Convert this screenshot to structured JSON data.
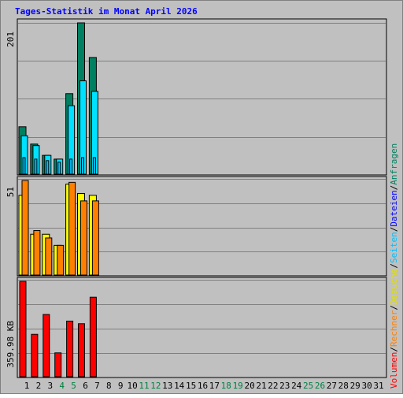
{
  "title": "Tages-Statistik im Monat April 2026",
  "colors": {
    "title": "#0000ff",
    "background": "#c0c0c0",
    "panel_border": "#000000",
    "gridline": "#808080",
    "anfragen": "#008060",
    "dateien": "#00e0ff",
    "seiten": "#00c0ff",
    "besuche": "#ffff00",
    "rechner": "#ff8000",
    "volumen": "#ff0000",
    "day_label_default": "#000000",
    "day_label_weekend": "#008040"
  },
  "right_legend": [
    {
      "label": "Volumen",
      "color": "#ff0000"
    },
    {
      "label": "Rechner",
      "color": "#ff8000"
    },
    {
      "label": "Besuche",
      "color": "#e0e000"
    },
    {
      "label": "Seiten",
      "color": "#00c0ff"
    },
    {
      "label": "Dateien",
      "color": "#0000ff"
    },
    {
      "label": "Anfragen",
      "color": "#008060"
    }
  ],
  "legend_separator": "/",
  "chart_data": {
    "type": "bar",
    "categories": [
      "1",
      "2",
      "3",
      "4",
      "5",
      "6",
      "7",
      "8",
      "9",
      "10",
      "11",
      "12",
      "13",
      "14",
      "15",
      "16",
      "17",
      "18",
      "19",
      "20",
      "21",
      "22",
      "23",
      "24",
      "25",
      "26",
      "27",
      "28",
      "29",
      "30",
      "31"
    ],
    "weekend_days": [
      "4",
      "5",
      "11",
      "12",
      "18",
      "19",
      "25",
      "26"
    ],
    "panels": [
      {
        "name": "requests",
        "axis_label": "201",
        "ymax": 201,
        "grid": true,
        "series": [
          {
            "name": "Anfragen",
            "values": [
              63,
              40,
              25,
              20,
              107,
              201,
              155
            ]
          },
          {
            "name": "Dateien",
            "values": [
              51,
              38,
              25,
              20,
              91,
              124,
              110
            ]
          },
          {
            "name": "Seiten",
            "values": [
              22,
              20,
              18,
              16,
              20,
              22,
              22
            ]
          }
        ]
      },
      {
        "name": "visits",
        "axis_label": "51",
        "ymax": 51,
        "grid": true,
        "series": [
          {
            "name": "Besuche",
            "values": [
              43,
              22,
              22,
              16,
              49,
              44,
              43
            ]
          },
          {
            "name": "Rechner",
            "values": [
              51,
              24,
              20,
              16,
              50,
              40,
              40
            ]
          }
        ]
      },
      {
        "name": "volume",
        "axis_label": "359.98 KB",
        "ymax": 359.98,
        "grid": true,
        "series": [
          {
            "name": "Volumen",
            "values": [
              359.98,
              160,
              235,
              90,
              210,
              200,
              300
            ]
          }
        ]
      }
    ]
  }
}
